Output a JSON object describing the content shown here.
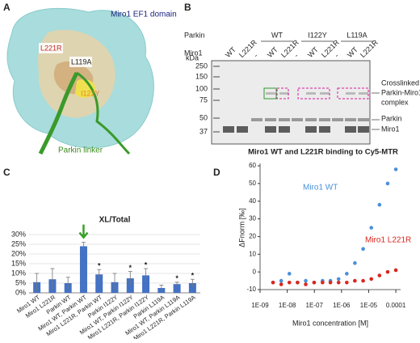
{
  "panel_labels": [
    "A",
    "B",
    "C",
    "D"
  ],
  "structure": {
    "title": "Miro1 EF1 domain",
    "residues": [
      "L221R",
      "L119A",
      "I122Y"
    ],
    "linker": "Parkin linker"
  },
  "gel": {
    "row_labels": [
      "Parkin",
      "Miro1"
    ],
    "parkin_lanes": [
      "WT",
      "I122Y",
      "L119A"
    ],
    "miro1_lanes": [
      "WT",
      "L221R",
      "-",
      "WT",
      "L221R",
      "-",
      "WT",
      "L221R",
      "-",
      "WT",
      "L221R"
    ],
    "kda_label": "kDa",
    "markers": [
      "250",
      "150",
      "100",
      "75",
      "50",
      "37"
    ],
    "complex_label": [
      "Crosslinked",
      "Parkin-Miro1",
      "complex"
    ],
    "parkin_band": "Parkin",
    "miro1_band": "Miro1"
  },
  "chart_data": [
    {
      "type": "bar",
      "title": "XL/Total",
      "categories": [
        "Miro1 WT",
        "Miro1 L221R",
        "Parkin WT",
        "Miro1 WT, Parkin WT",
        "Miro1 L221R, Parkin WT",
        "Parkin I122Y",
        "Miro1 WT, Parkin I122Y",
        "Miro1 L221R, Parkin I122Y",
        "Parkin L119A",
        "Miro1 WT, Parkin L119A",
        "Miro1 L221R, Parkin L119A"
      ],
      "values": [
        5.5,
        7,
        5,
        24,
        9.5,
        5.5,
        7.5,
        9,
        2.5,
        4.5,
        5
      ],
      "errors": [
        4.5,
        5.5,
        3,
        2,
        2.5,
        4.5,
        3.5,
        3.5,
        1.5,
        1,
        2
      ],
      "color": "#4472c4",
      "ylim": [
        0,
        30
      ],
      "yticks": [
        {
          "value": 0,
          "label": "0%"
        },
        {
          "value": 5,
          "label": "5%"
        },
        {
          "value": 10,
          "label": "10%"
        },
        {
          "value": 15,
          "label": "15%"
        },
        {
          "value": 20,
          "label": "20%"
        },
        {
          "value": 25,
          "label": "25%"
        },
        {
          "value": 30,
          "label": "30%"
        }
      ],
      "annotations": [
        {
          "text": "*",
          "x": "Miro1 L221R, Parkin WT"
        },
        {
          "text": "*",
          "x": "Miro1 WT, Parkin I122Y"
        },
        {
          "text": "*",
          "x": "Miro1 L221R, Parkin I122Y"
        },
        {
          "text": "*",
          "x": "Miro1 WT, Parkin L119A"
        },
        {
          "text": "*",
          "x": "Miro1 L221R, Parkin L119A"
        }
      ]
    },
    {
      "type": "scatter",
      "title": "Miro1 WT and L221R binding to Cy5-MTR",
      "xlabel": "Miro1 concentration [M]",
      "ylabel": "ΔFnorm [‰]",
      "xscale": "log",
      "xlim": [
        1e-09,
        0.00015
      ],
      "ylim": [
        -10,
        60
      ],
      "xticks": [
        {
          "value": 1e-09,
          "label": "1E-09"
        },
        {
          "value": 1e-08,
          "label": "1E-08"
        },
        {
          "value": 1e-07,
          "label": "1E-07"
        },
        {
          "value": 1e-06,
          "label": "1E-06"
        },
        {
          "value": 1e-05,
          "label": "1E-05"
        },
        0.0001
      ],
      "yticks": [
        -10,
        0,
        10,
        20,
        30,
        40,
        50,
        60
      ],
      "series": [
        {
          "name": "Miro1 WT",
          "color": "#4a90d9",
          "x": [
            3e-09,
            6e-09,
            1.2e-08,
            2.4e-08,
            4.8e-08,
            9.8e-08,
            2e-07,
            3.9e-07,
            7.8e-07,
            1.56e-06,
            3.1e-06,
            6.25e-06,
            1.25e-05,
            2.5e-05,
            5e-05,
            0.0001
          ],
          "values": [
            -6,
            -5,
            -1,
            -6,
            -5,
            -6,
            -5,
            -5,
            -4,
            -1,
            5,
            13,
            25,
            38,
            50,
            58
          ]
        },
        {
          "name": "Miro1 L221R",
          "color": "#d9261c",
          "x": [
            3e-09,
            6e-09,
            1.2e-08,
            2.4e-08,
            4.8e-08,
            9.8e-08,
            2e-07,
            3.9e-07,
            7.8e-07,
            1.56e-06,
            3.1e-06,
            6.25e-06,
            1.25e-05,
            2.5e-05,
            5e-05,
            0.0001
          ],
          "values": [
            -6,
            -7,
            -6,
            -6,
            -7,
            -6,
            -6,
            -6,
            -6,
            -6,
            -5,
            -5,
            -4,
            -2,
            0,
            1
          ]
        }
      ]
    }
  ]
}
